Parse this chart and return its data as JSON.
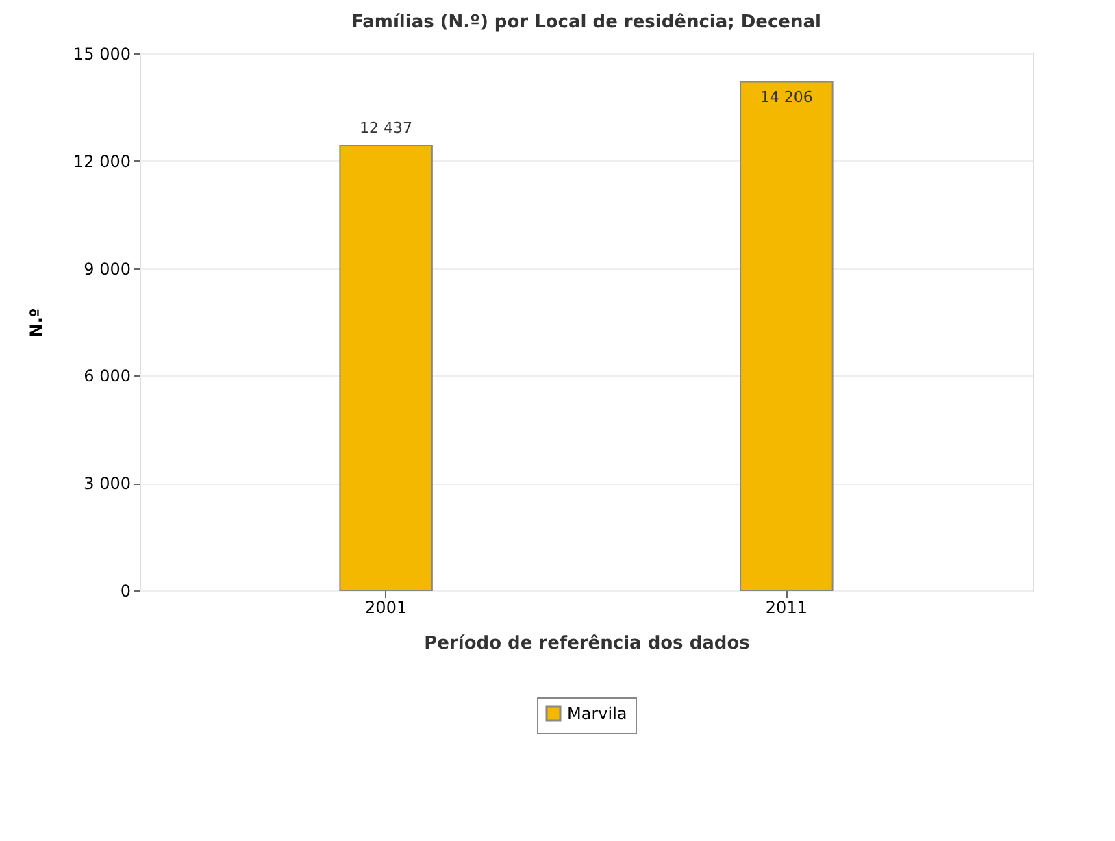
{
  "chart_data": {
    "type": "bar",
    "title": "Famílias (N.º) por Local de residência; Decenal",
    "xlabel": "Período de referência dos dados",
    "ylabel": "N.º",
    "categories": [
      "2001",
      "2011"
    ],
    "series": [
      {
        "name": "Marvila",
        "color": "#f5b800",
        "values": [
          12437,
          14206
        ],
        "value_labels": [
          "12 437",
          "14 206"
        ]
      }
    ],
    "ylim": [
      0,
      15000
    ],
    "yticks": [
      {
        "value": 0,
        "label": "0"
      },
      {
        "value": 3000,
        "label": "3 000"
      },
      {
        "value": 6000,
        "label": "6 000"
      },
      {
        "value": 9000,
        "label": "9 000"
      },
      {
        "value": 12000,
        "label": "12 000"
      },
      {
        "value": 15000,
        "label": "15 000"
      }
    ],
    "grid": "y",
    "legend": "bottom"
  }
}
